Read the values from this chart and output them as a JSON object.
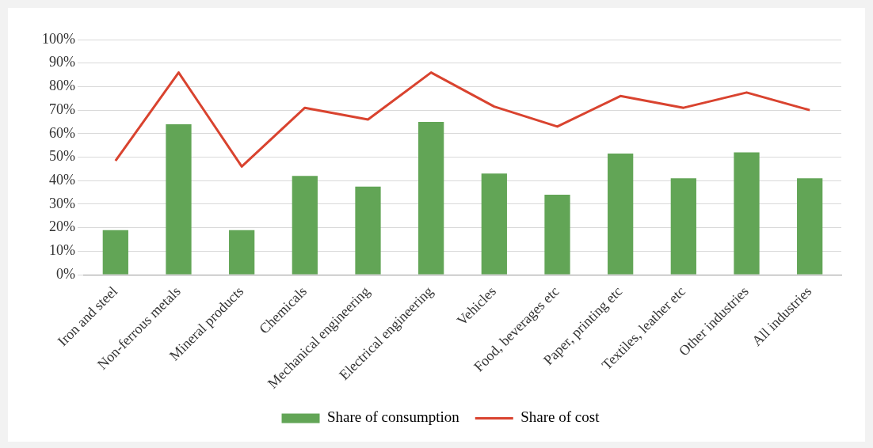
{
  "chart_data": {
    "type": "bar",
    "categories": [
      "Iron and steel",
      "Non-ferrous metals",
      "Mineral products",
      "Chemicals",
      "Mechanical engineering",
      "Electrical engineering",
      "Vehicles",
      "Food, beverages etc",
      "Paper, printing etc",
      "Textiles, leather etc",
      "Other industries",
      "All industries"
    ],
    "series": [
      {
        "name": "Share of consumption",
        "color": "#62a556",
        "values": [
          19,
          64,
          19,
          42,
          37.5,
          65,
          43,
          34,
          51.5,
          41,
          52,
          41
        ]
      },
      {
        "name": "Share of cost",
        "type": "line",
        "color": "#d9432f",
        "values": [
          48.5,
          86,
          46,
          71,
          66,
          86,
          71.5,
          63,
          76,
          71,
          77.5,
          70
        ]
      }
    ],
    "ylim": [
      0,
      100
    ],
    "yticks": [
      {
        "value": 0,
        "label": "0%"
      },
      {
        "value": 10,
        "label": "10%"
      },
      {
        "value": 20,
        "label": "20%"
      },
      {
        "value": 30,
        "label": "30%"
      },
      {
        "value": 40,
        "label": "40%"
      },
      {
        "value": 50,
        "label": "50%"
      },
      {
        "value": 60,
        "label": "60%"
      },
      {
        "value": 70,
        "label": "70%"
      },
      {
        "value": 80,
        "label": "80%"
      },
      {
        "value": 90,
        "label": "90%"
      },
      {
        "value": 100,
        "label": "100%"
      }
    ],
    "grid": "y",
    "legend": "bottom",
    "marker": "none",
    "line_style": "solid"
  }
}
